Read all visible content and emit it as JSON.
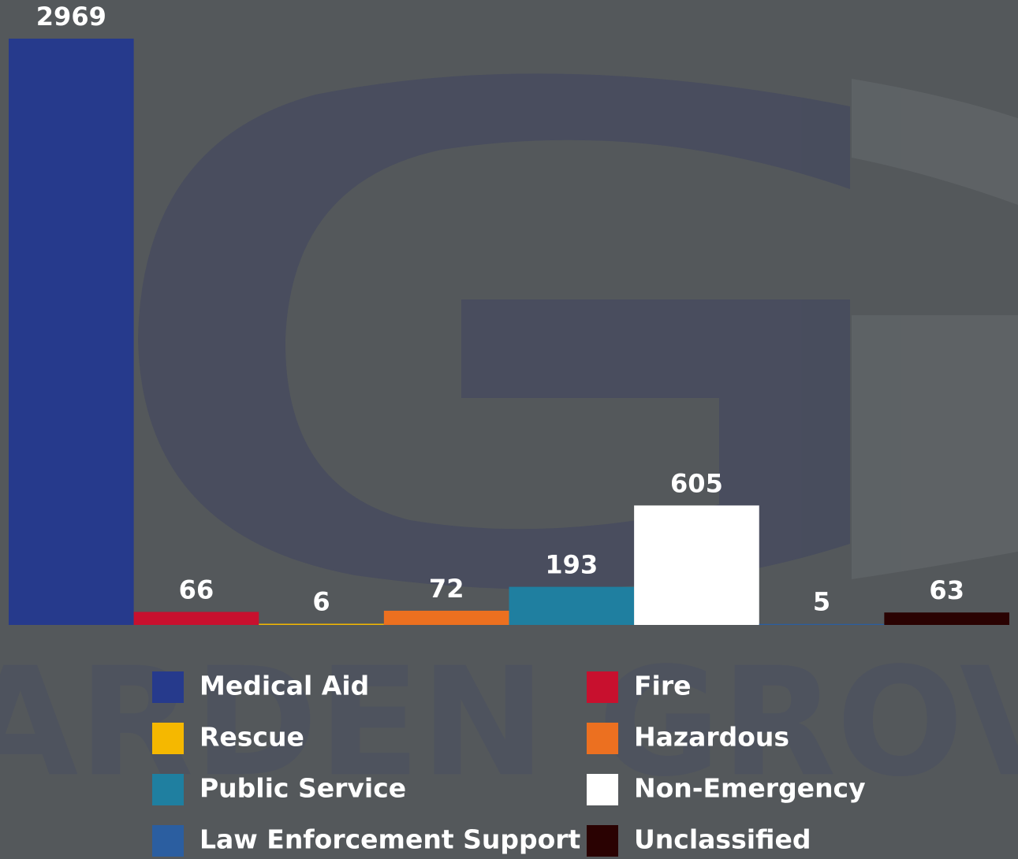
{
  "chart_data": {
    "type": "bar",
    "watermark": "GARDEN GROVE",
    "categories": [
      "Medical Aid",
      "Fire",
      "Rescue",
      "Hazardous",
      "Public Service",
      "Non-Emergency",
      "Law Enforcement Support",
      "Unclassified"
    ],
    "values": [
      2969,
      66,
      6,
      72,
      193,
      605,
      5,
      63
    ],
    "colors": [
      "#263a8c",
      "#c8102e",
      "#f5b800",
      "#ec7020",
      "#1f7fa0",
      "#ffffff",
      "#2b5ea0",
      "#2a0202"
    ],
    "legend": "bottom"
  }
}
